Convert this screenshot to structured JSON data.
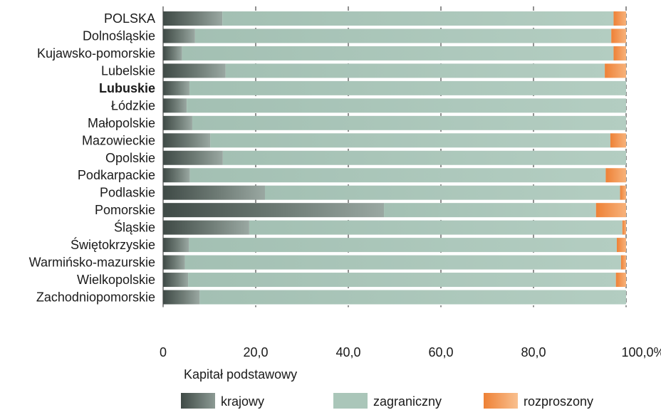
{
  "chart_data": {
    "type": "bar",
    "orientation": "horizontal",
    "stacked": true,
    "categories": [
      "POLSKA",
      "Dolnośląskie",
      "Kujawsko-pomorskie",
      "Lubelskie",
      "Lubuskie",
      "Łódzkie",
      "Małopolskie",
      "Mazowieckie",
      "Opolskie",
      "Podkarpackie",
      "Podlaskie",
      "Pomorskie",
      "Śląskie",
      "Świętokrzyskie",
      "Warmińsko-mazurskie",
      "Wielkopolskie",
      "Zachodniopomorskie"
    ],
    "highlighted_category": "Lubuskie",
    "series": [
      {
        "name": "krajowy",
        "color": "#4f5c57",
        "values": [
          12.8,
          6.9,
          4.1,
          13.5,
          5.7,
          5.1,
          6.3,
          10.2,
          12.9,
          5.8,
          22.0,
          47.7,
          18.6,
          5.6,
          4.7,
          5.4,
          7.9
        ]
      },
      {
        "name": "zagraniczny",
        "color": "#a8c4b8",
        "values": [
          84.5,
          89.9,
          93.2,
          81.9,
          94.3,
          94.9,
          93.7,
          86.4,
          87.1,
          89.8,
          76.7,
          45.8,
          80.6,
          92.4,
          94.2,
          92.4,
          92.1
        ]
      },
      {
        "name": "rozproszony",
        "color": "#f08f45",
        "values": [
          2.7,
          3.2,
          2.7,
          4.6,
          0.0,
          0.0,
          0.0,
          3.4,
          0.0,
          4.4,
          1.3,
          6.5,
          0.8,
          2.0,
          1.1,
          2.2,
          0.0
        ]
      }
    ],
    "xlim": [
      0,
      100
    ],
    "xticks": [
      "0",
      "20,0",
      "40,0",
      "60,0",
      "80,0",
      "100,0%"
    ],
    "xtick_values": [
      0,
      20,
      40,
      60,
      80,
      100
    ],
    "grid": "vertical dashed",
    "legend_title": "Kapitał podstawowy",
    "legend_position": "bottom"
  }
}
